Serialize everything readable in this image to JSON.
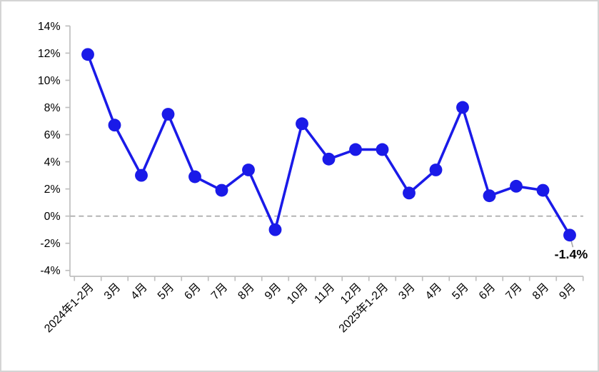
{
  "chart_data": {
    "type": "line",
    "title": "",
    "xlabel": "",
    "ylabel": "",
    "categories": [
      "2024年1-2月",
      "3月",
      "4月",
      "5月",
      "6月",
      "7月",
      "8月",
      "9月",
      "10月",
      "11月",
      "12月",
      "2025年1-2月",
      "3月",
      "4月",
      "5月",
      "6月",
      "7月",
      "8月",
      "9月"
    ],
    "values": [
      11.9,
      6.7,
      3.0,
      7.5,
      2.9,
      1.9,
      3.4,
      -1.0,
      6.8,
      4.2,
      4.9,
      4.9,
      1.7,
      3.4,
      8.0,
      1.5,
      2.2,
      1.9,
      -1.4
    ],
    "ylim": [
      -4,
      14
    ],
    "ytick_step": 2,
    "ytick_values": [
      14,
      12,
      10,
      8,
      6,
      4,
      2,
      0,
      -2,
      -4
    ],
    "ytick_labels": [
      "14%",
      "12%",
      "10%",
      "8%",
      "6%",
      "4%",
      "2%",
      "0%",
      "-2%",
      "-4%"
    ],
    "grid": false,
    "legend": "none",
    "zero_line_style": "dashed",
    "x_label_rotation_deg": 45,
    "annotation": {
      "text": "-1.4%",
      "index": 18
    },
    "colors": {
      "line": "#1a1ae8",
      "marker": "#1a1ae8",
      "axis": "#bfbfbf",
      "zero_line": "#a6a6a6",
      "tick_text": "#000000",
      "annotation_text": "#000000",
      "leader_line": "#a6a6a6",
      "border": "#d4d4d4",
      "background": "#ffffff"
    }
  }
}
